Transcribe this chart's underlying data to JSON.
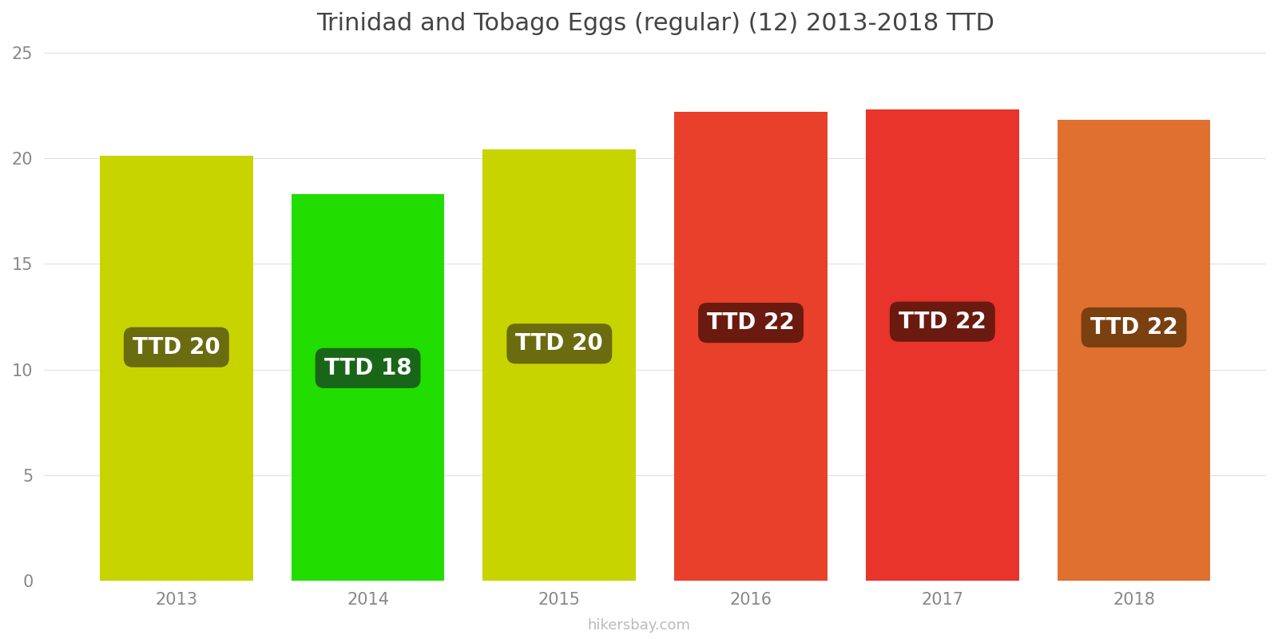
{
  "title": "Trinidad and Tobago Eggs (regular) (12) 2013-2018 TTD",
  "years": [
    2013,
    2014,
    2015,
    2016,
    2017,
    2018
  ],
  "values": [
    20.1,
    18.3,
    20.4,
    22.2,
    22.3,
    21.8
  ],
  "labels": [
    "TTD 20",
    "TTD 18",
    "TTD 20",
    "TTD 22",
    "TTD 22",
    "TTD 22"
  ],
  "bar_colors": [
    "#c8d400",
    "#22dd00",
    "#c8d400",
    "#e8402a",
    "#e8342a",
    "#e07030"
  ],
  "label_bg_colors": [
    "#6b6b10",
    "#1a6618",
    "#6b6b10",
    "#6b1a10",
    "#6b1a10",
    "#7a4010"
  ],
  "ylim": [
    0,
    25
  ],
  "yticks": [
    0,
    5,
    10,
    15,
    20,
    25
  ],
  "background_color": "#ffffff",
  "watermark": "hikersbay.com",
  "title_fontsize": 22,
  "label_fontsize": 20,
  "tick_fontsize": 15,
  "bar_width": 0.8
}
